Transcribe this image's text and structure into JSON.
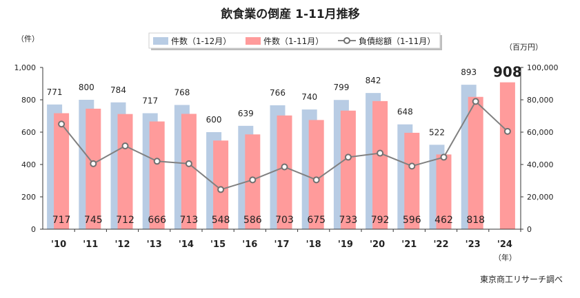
{
  "chart_data": {
    "type": "bar",
    "title": "飲食業の倒産 1-11月推移",
    "source": "東京商工リサーチ調べ",
    "y_left_unit": "（件）",
    "y_right_unit": "（百万円）",
    "x_unit": "（年）",
    "categories": [
      "'10",
      "'11",
      "'12",
      "'13",
      "'14",
      "'15",
      "'16",
      "'17",
      "'18",
      "'19",
      "'20",
      "'21",
      "'22",
      "'23",
      "'24"
    ],
    "y_left_lim": [
      0,
      1000
    ],
    "y_left_ticks": [
      "0",
      "200",
      "400",
      "600",
      "800",
      "1,000"
    ],
    "y_right_lim": [
      0,
      100000
    ],
    "y_right_ticks": [
      "0",
      "20,000",
      "40,000",
      "60,000",
      "80,000",
      "100,000"
    ],
    "grid": false,
    "legend_position": "top",
    "series": [
      {
        "name": "件数（1-12月）",
        "type": "bar",
        "axis": "left",
        "color": "#b8cce4",
        "values": [
          771,
          800,
          784,
          717,
          768,
          600,
          639,
          766,
          740,
          799,
          842,
          648,
          522,
          893,
          null
        ],
        "labels": [
          "771",
          "800",
          "784",
          "717",
          "768",
          "600",
          "639",
          "766",
          "740",
          "799",
          "842",
          "648",
          "522",
          "893",
          ""
        ]
      },
      {
        "name": "件数（1-11月）",
        "type": "bar",
        "axis": "left",
        "color": "#ff9b9b",
        "values": [
          717,
          745,
          712,
          666,
          713,
          548,
          586,
          703,
          675,
          733,
          792,
          596,
          462,
          818,
          908
        ],
        "labels": [
          "717",
          "745",
          "712",
          "666",
          "713",
          "548",
          "586",
          "703",
          "675",
          "733",
          "792",
          "596",
          "462",
          "818",
          "908"
        ]
      },
      {
        "name": "負債総額（1-11月）",
        "type": "line",
        "axis": "right",
        "color": "#808080",
        "values": [
          65000,
          40500,
          51500,
          42000,
          40500,
          24500,
          30500,
          38500,
          30500,
          44500,
          47000,
          39000,
          44500,
          79000,
          60500
        ]
      }
    ]
  }
}
